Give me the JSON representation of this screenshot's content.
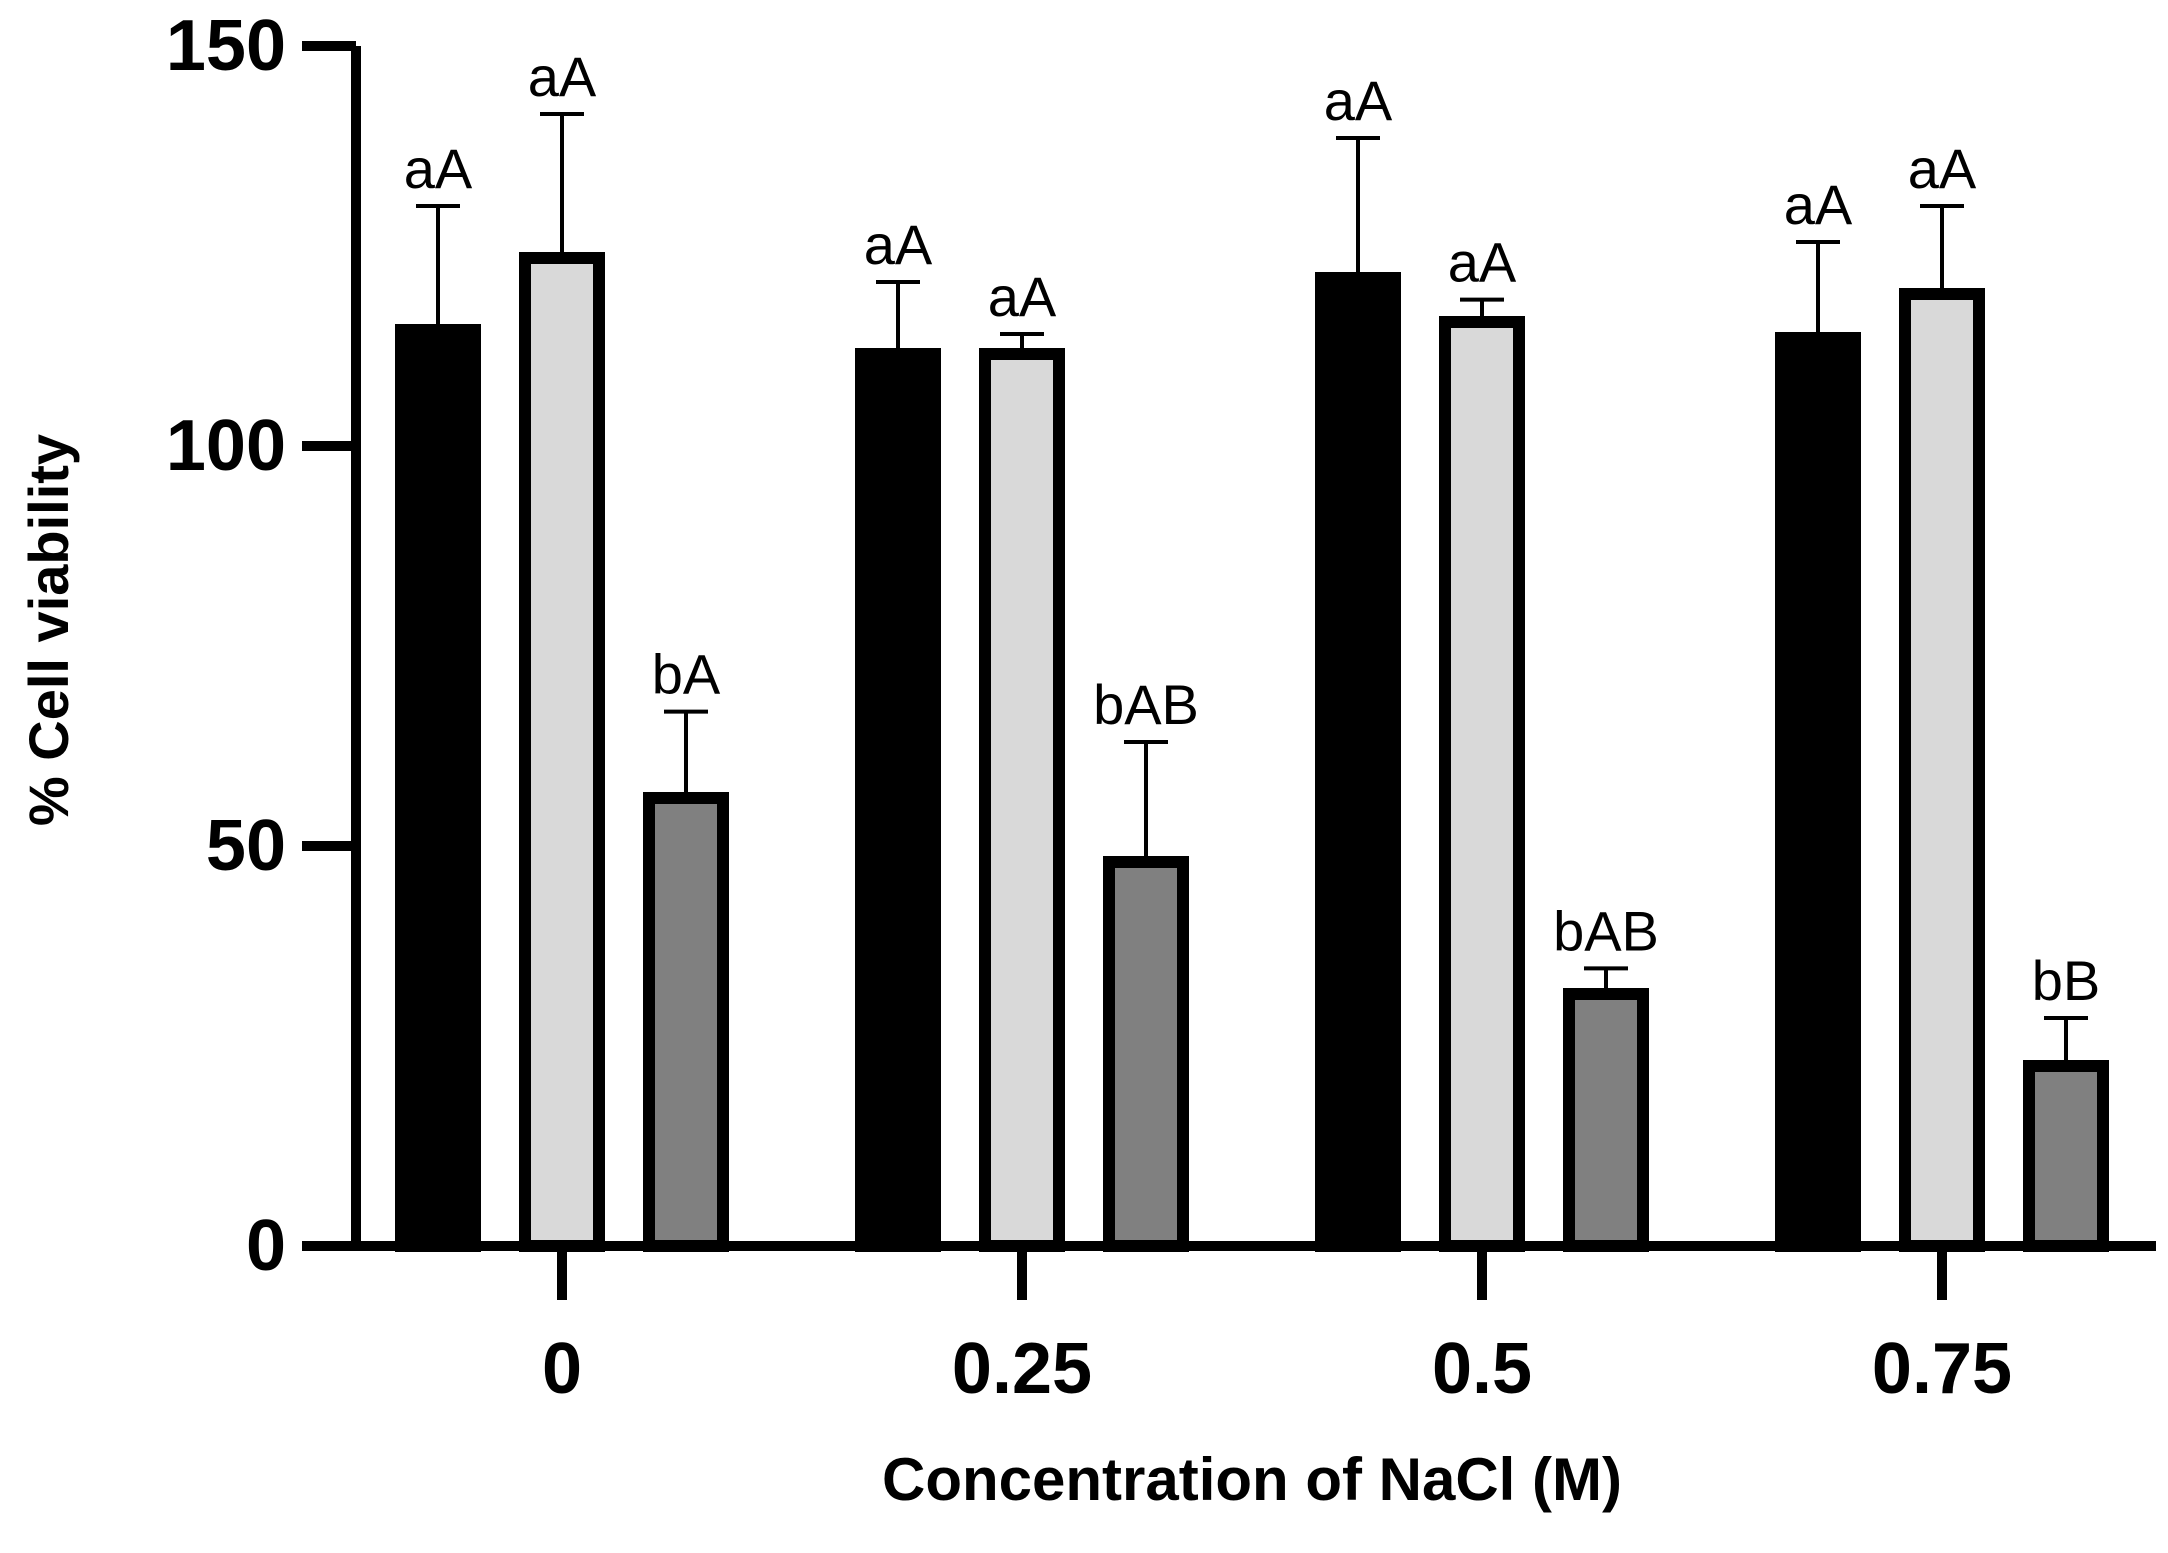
{
  "chart_data": {
    "type": "bar",
    "title": "",
    "xlabel": "Concentration of NaCl (M)",
    "ylabel": "% Cell viability",
    "ylim": [
      0,
      150
    ],
    "yticks": [
      0,
      50,
      100,
      150
    ],
    "ytick_labels": [
      "0",
      "50",
      "100",
      "150"
    ],
    "categories": [
      "0",
      "0.25",
      "0.5",
      "0.75"
    ],
    "legend": [],
    "series": [
      {
        "name": "series-1",
        "color": "#000000",
        "values": [
          114.5,
          111.5,
          121,
          113.5
        ],
        "errors": [
          15.5,
          9,
          17.5,
          12
        ],
        "labels": [
          "aA",
          "aA",
          "aA",
          "aA"
        ]
      },
      {
        "name": "series-2",
        "color": "#d9d9d9",
        "values": [
          123.5,
          111.5,
          115.5,
          119
        ],
        "errors": [
          18,
          2.5,
          2.8,
          11
        ],
        "labels": [
          "aA",
          "aA",
          "aA",
          "aA"
        ]
      },
      {
        "name": "series-3",
        "color": "#808080",
        "values": [
          56,
          48,
          31.5,
          22.5
        ],
        "errors": [
          10.8,
          15,
          3.2,
          6
        ],
        "labels": [
          "bA",
          "bAB",
          "bAB",
          "bB"
        ]
      }
    ]
  }
}
